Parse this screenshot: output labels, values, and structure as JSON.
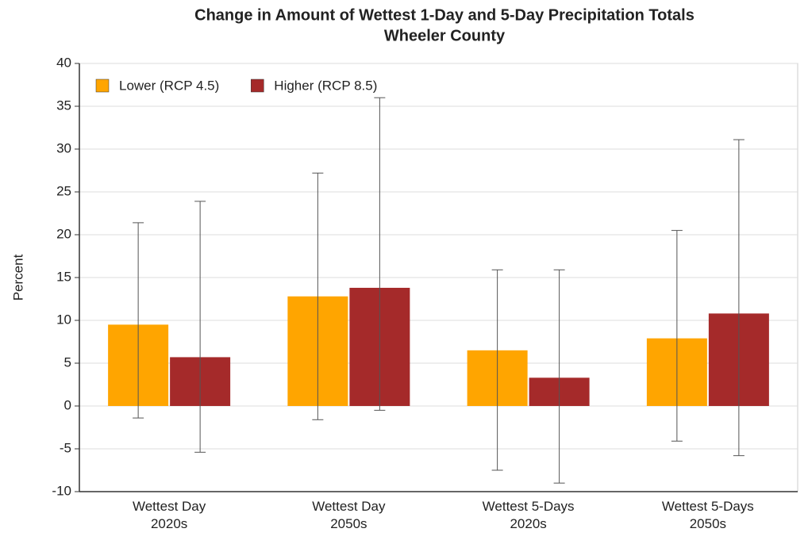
{
  "chart_data": {
    "type": "bar",
    "title": "Change in Amount of Wettest 1-Day and 5-Day Precipitation Totals",
    "subtitle": "Wheeler County",
    "y_label": "Percent",
    "categories": [
      [
        "Wettest Day",
        "2020s"
      ],
      [
        "Wettest Day",
        "2050s"
      ],
      [
        "Wettest 5-Days",
        "2020s"
      ],
      [
        "Wettest 5-Days",
        "2050s"
      ]
    ],
    "series": [
      {
        "name": "Lower (RCP 4.5)",
        "color": "#ffa500",
        "values": [
          9.5,
          12.8,
          6.5,
          7.9
        ],
        "low": [
          -1.4,
          -1.6,
          -7.5,
          -4.1
        ],
        "high": [
          21.4,
          27.2,
          15.9,
          20.5
        ]
      },
      {
        "name": "Higher (RCP 8.5)",
        "color": "#a52a2a",
        "values": [
          5.7,
          13.8,
          3.3,
          10.8
        ],
        "low": [
          -5.4,
          -0.5,
          -9.0,
          -5.8
        ],
        "high": [
          23.9,
          36.0,
          15.9,
          31.1
        ]
      }
    ],
    "ylim": [
      -10,
      40
    ],
    "yticks": [
      -10,
      -5,
      0,
      5,
      10,
      15,
      20,
      25,
      30,
      35,
      40
    ],
    "grid": true,
    "legend": "top-left"
  }
}
